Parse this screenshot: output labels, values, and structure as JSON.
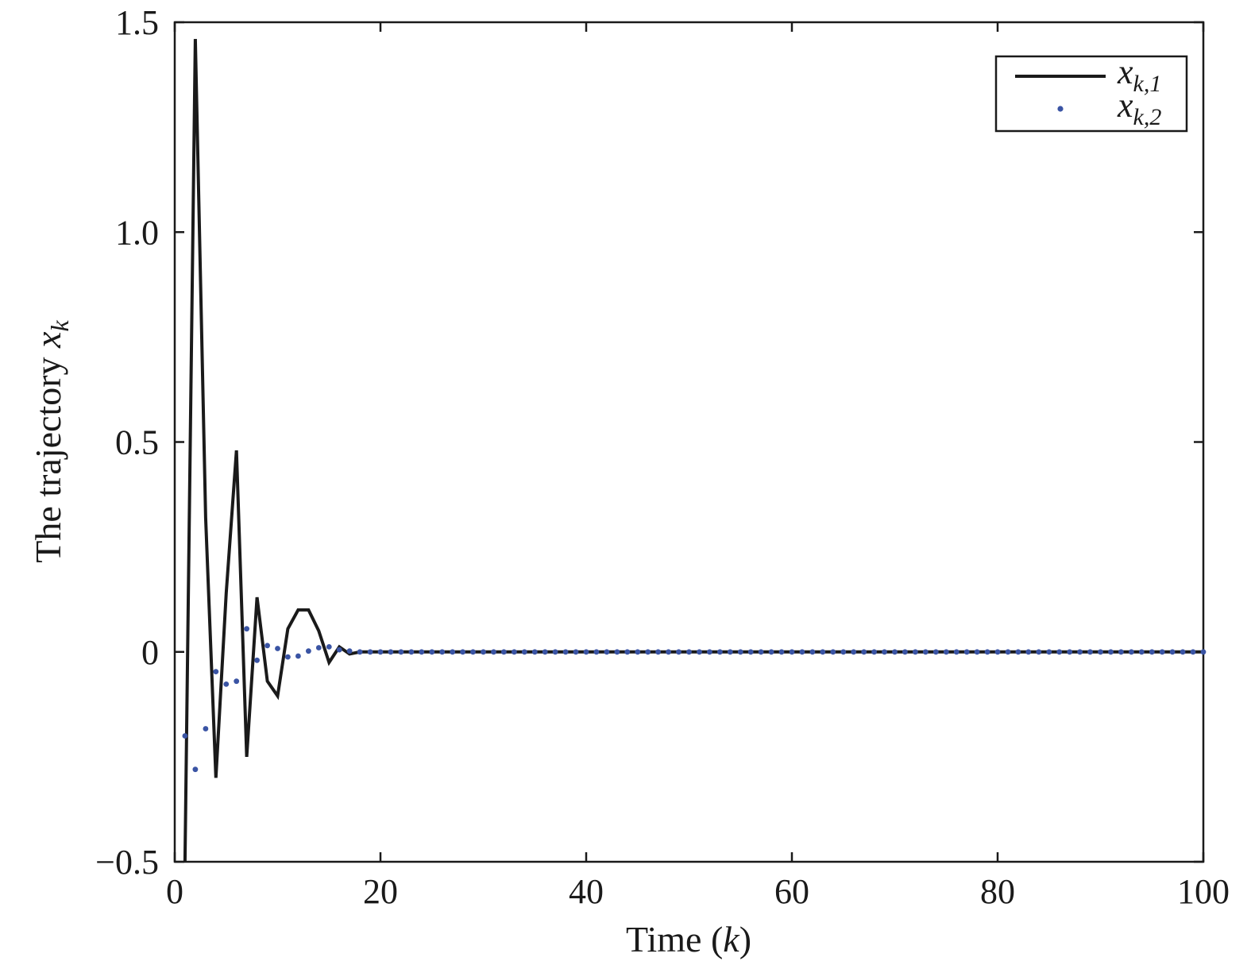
{
  "chart_data": {
    "type": "line",
    "xlabel": {
      "main": "Time (",
      "var": "k",
      "tail": ")"
    },
    "ylabel": {
      "main": "The trajectory ",
      "var": "x",
      "sub": "k"
    },
    "xlim": [
      0,
      100
    ],
    "ylim": [
      -0.5,
      1.5
    ],
    "x_ticks": [
      0,
      20,
      40,
      60,
      80,
      100
    ],
    "x_tick_labels": [
      "0",
      "20",
      "40",
      "60",
      "80",
      "100"
    ],
    "y_ticks": [
      -0.5,
      0,
      0.5,
      1.0,
      1.5
    ],
    "y_tick_labels": [
      "−0.5",
      "0",
      "0.5",
      "1.0",
      "1.5"
    ],
    "grid": false,
    "legend": {
      "placement": "top-right"
    },
    "series": [
      {
        "name": {
          "var": "x",
          "sub": "k,1"
        },
        "style": "solid-line",
        "color": "#1a1a1a",
        "x": [
          1,
          2,
          3,
          4,
          5,
          6,
          7,
          8,
          9,
          10,
          11,
          12,
          13,
          14,
          15,
          16,
          17,
          18,
          19,
          20
        ],
        "y": [
          -0.5,
          1.46,
          0.32,
          -0.3,
          0.14,
          0.48,
          -0.25,
          0.13,
          -0.07,
          -0.105,
          0.055,
          0.1,
          0.1,
          0.05,
          -0.025,
          0.012,
          -0.005,
          0,
          0,
          0
        ]
      },
      {
        "name": {
          "var": "x",
          "sub": "k,2"
        },
        "style": "dots",
        "color": "#3a54a4",
        "x": [
          1,
          2,
          3,
          4,
          5,
          6,
          7,
          8,
          9,
          10,
          11,
          12,
          13,
          14,
          15,
          16,
          17,
          18,
          19,
          20
        ],
        "y": [
          -0.2,
          -0.28,
          -0.183,
          -0.047,
          -0.077,
          -0.07,
          0.055,
          -0.02,
          0.015,
          0.008,
          -0.012,
          -0.01,
          0.002,
          0.01,
          0.012,
          0.005,
          0.002,
          0,
          0,
          0
        ]
      }
    ]
  }
}
